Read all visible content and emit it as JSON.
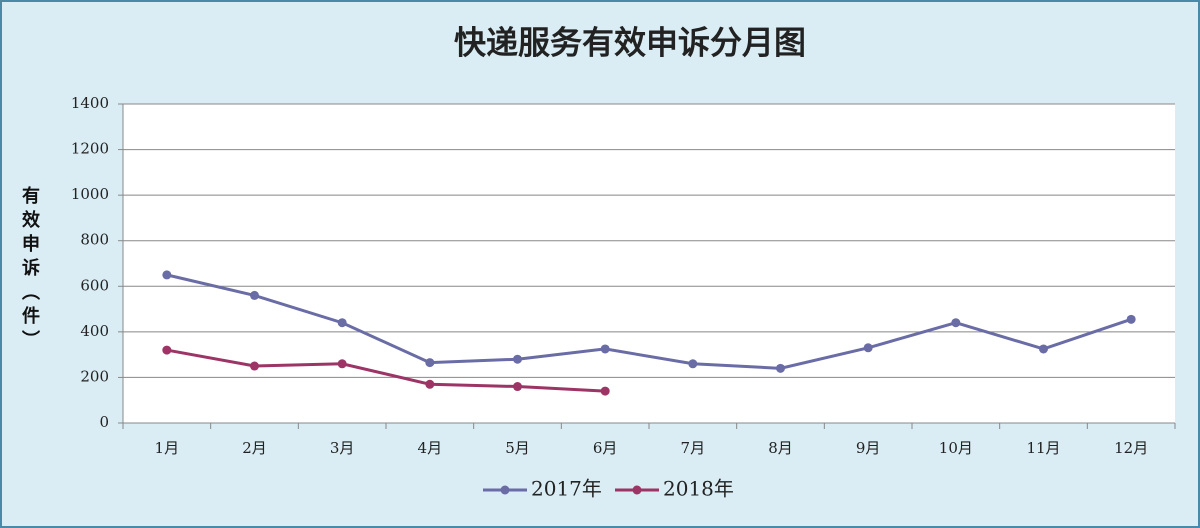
{
  "chart_data": {
    "type": "line",
    "title": "快递服务有效申诉分月图",
    "y_label": "有效申诉（件）",
    "categories": [
      "1月",
      "2月",
      "3月",
      "4月",
      "5月",
      "6月",
      "7月",
      "8月",
      "9月",
      "10月",
      "11月",
      "12月"
    ],
    "series": [
      {
        "name": "2017年",
        "color": "#6a6ca6",
        "values": [
          650,
          560,
          440,
          265,
          280,
          325,
          260,
          240,
          330,
          440,
          325,
          455
        ]
      },
      {
        "name": "2018年",
        "color": "#9c3465",
        "values": [
          320,
          250,
          260,
          170,
          160,
          140,
          null,
          null,
          null,
          null,
          null,
          null
        ]
      }
    ],
    "ylim": [
      0,
      1400
    ],
    "yticks": [
      0,
      200,
      400,
      600,
      800,
      1000,
      1200,
      1400
    ],
    "grid": true,
    "legend": "bottom"
  }
}
